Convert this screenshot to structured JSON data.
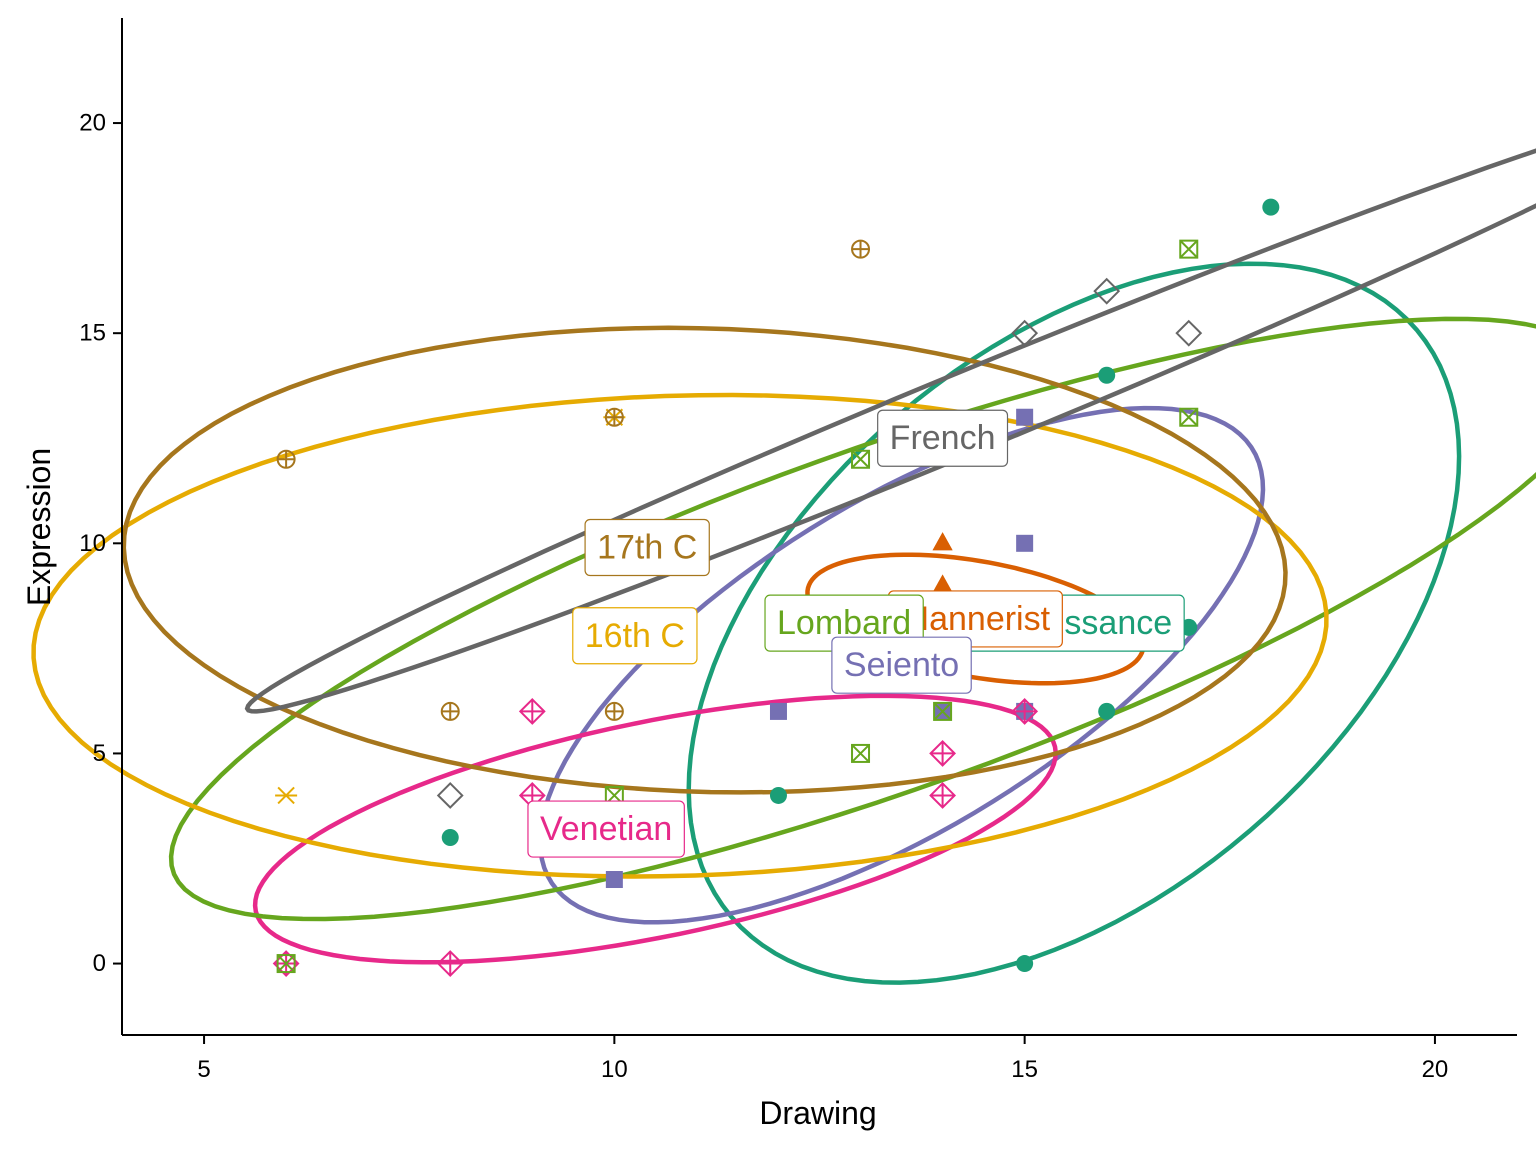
{
  "chart_data": {
    "type": "scatter",
    "title": "",
    "xlabel": "Drawing",
    "ylabel": "Expression",
    "xlim": [
      4,
      21
    ],
    "ylim": [
      -1.7,
      22.5
    ],
    "xticks": [
      5,
      10,
      15,
      20
    ],
    "yticks": [
      0,
      5,
      10,
      15,
      20
    ],
    "grid": false,
    "legend": "none",
    "ellipses": "95% data ellipse per school",
    "series": [
      {
        "name": "Renaissance",
        "label": "Renaissance",
        "color": "#1B9E77",
        "marker": "circle",
        "x": [
          8,
          12,
          15,
          14,
          18,
          16,
          16,
          17
        ],
        "y": [
          3,
          4,
          0,
          6,
          18,
          14,
          6,
          8
        ],
        "ellipse": {
          "cx": 15.6,
          "cy": 8.1,
          "a": 8.9,
          "b": 4.0,
          "angle": 72
        }
      },
      {
        "name": "Mannerist",
        "label": "Mannerist",
        "color": "#D95F02",
        "marker": "triangle",
        "x": [
          14,
          14,
          14,
          14
        ],
        "y": [
          10,
          10,
          9,
          8
        ],
        "ellipse": {
          "cx": 14.4,
          "cy": 8.2,
          "a": 2.2,
          "b": 1.3,
          "angle": -27
        }
      },
      {
        "name": "Seiento",
        "label": "Seiento",
        "color": "#7570B3",
        "marker": "square",
        "x": [
          15,
          15,
          12,
          10,
          15,
          14
        ],
        "y": [
          13,
          10,
          6,
          2,
          6,
          6
        ],
        "ellipse": {
          "cx": 13.5,
          "cy": 7.1,
          "a": 7.0,
          "b": 2.8,
          "angle": 58
        }
      },
      {
        "name": "Venetian",
        "label": "Venetian",
        "color": "#E7298A",
        "marker": "diamond-plus",
        "x": [
          9,
          9,
          8,
          14,
          14,
          6,
          15
        ],
        "y": [
          6,
          4,
          0,
          5,
          4,
          0,
          6
        ],
        "ellipse": {
          "cx": 10.5,
          "cy": 3.2,
          "a": 5.3,
          "b": 2.4,
          "angle": 26
        }
      },
      {
        "name": "Lombard",
        "label": "Lombard",
        "color": "#66A61E",
        "marker": "square-x",
        "x": [
          17,
          17,
          13,
          13,
          10,
          14,
          6
        ],
        "y": [
          17,
          13,
          12,
          5,
          4,
          6,
          0
        ],
        "ellipse": {
          "cx": 13.3,
          "cy": 8.2,
          "a": 10.7,
          "b": 3.5,
          "angle": 38
        }
      },
      {
        "name": "16th C",
        "label": "16th C",
        "color": "#E6AB02",
        "marker": "asterisk",
        "x": [
          10,
          6
        ],
        "y": [
          13,
          4
        ],
        "ellipse": {
          "cx": 10.8,
          "cy": 7.8,
          "a": 7.9,
          "b": 5.7,
          "angle": 6
        }
      },
      {
        "name": "17th C",
        "label": "17th C",
        "color": "#A6761D",
        "marker": "circle-plus",
        "x": [
          13,
          6,
          8,
          10,
          10
        ],
        "y": [
          17,
          12,
          6,
          6,
          13
        ],
        "ellipse": {
          "cx": 11.1,
          "cy": 9.6,
          "a": 7.1,
          "b": 5.5,
          "angle": -7
        }
      },
      {
        "name": "French",
        "label": "French",
        "color": "#666666",
        "marker": "diamond",
        "x": [
          15,
          16,
          17,
          8
        ],
        "y": [
          15,
          16,
          15,
          4
        ],
        "ellipse": {
          "cx": 14.4,
          "cy": 13.2,
          "a": 11.4,
          "b": 0.8,
          "angle": 39
        }
      }
    ],
    "group_labels": [
      {
        "text": "Renaissance",
        "x": 15.6,
        "y": 8.1,
        "color": "#1B9E77"
      },
      {
        "text": "Mannerist",
        "x": 14.4,
        "y": 8.2,
        "color": "#D95F02"
      },
      {
        "text": "Lombard",
        "x": 12.8,
        "y": 8.1,
        "color": "#66A61E"
      },
      {
        "text": "Seiento",
        "x": 13.5,
        "y": 7.1,
        "color": "#7570B3"
      },
      {
        "text": "French",
        "x": 14.0,
        "y": 12.5,
        "color": "#666666"
      },
      {
        "text": "17th C",
        "x": 10.4,
        "y": 9.9,
        "color": "#A6761D"
      },
      {
        "text": "16th C",
        "x": 10.25,
        "y": 7.8,
        "color": "#E6AB02"
      },
      {
        "text": "Venetian",
        "x": 9.9,
        "y": 3.2,
        "color": "#E7298A"
      }
    ]
  }
}
